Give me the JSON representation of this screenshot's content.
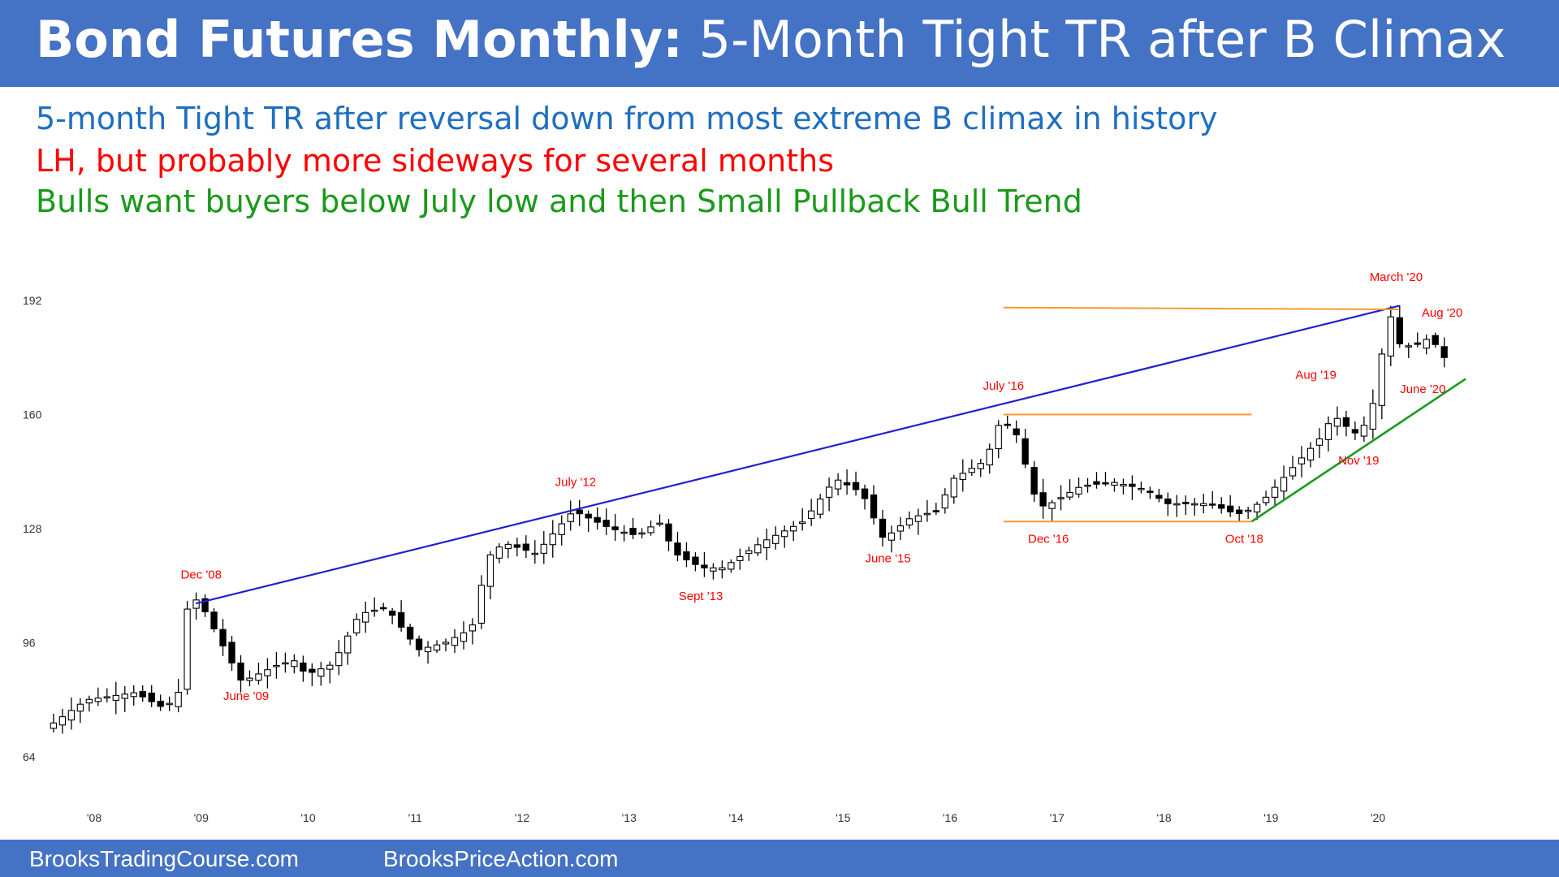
{
  "header": {
    "title_bold": "Bond Futures Monthly:",
    "title_rest": "5-Month Tight TR after B Climax"
  },
  "subtitle": {
    "line1": "5-month Tight TR after reversal down from most extreme B climax in history",
    "line2": "LH, but probably more sideways for several months",
    "line3": "Bulls want buyers below July low and then Small Pullback Bull Trend"
  },
  "footer": {
    "left": "BrooksTradingCourse.com",
    "right": "BrooksPriceAction.com"
  },
  "colors": {
    "header_bg": "#4472c4",
    "trendline_blue": "#2020d0",
    "trendline_green": "#1a9a1a",
    "range_orange": "#f59a30",
    "annotation_red": "#ff0000"
  },
  "chart_data": {
    "type": "candlestick",
    "ylim": [
      64,
      196
    ],
    "y_ticks": [
      64,
      96,
      128,
      160,
      192
    ],
    "x_range": [
      2007.55,
      2021.0
    ],
    "x_ticks": [
      {
        "value": 2008,
        "label": "'08"
      },
      {
        "value": 2009,
        "label": "'09"
      },
      {
        "value": 2010,
        "label": "'10"
      },
      {
        "value": 2011,
        "label": "'11"
      },
      {
        "value": 2012,
        "label": "'12"
      },
      {
        "value": 2013,
        "label": "'13"
      },
      {
        "value": 2014,
        "label": "'14"
      },
      {
        "value": 2015,
        "label": "'15"
      },
      {
        "value": 2016,
        "label": "'16"
      },
      {
        "value": 2017,
        "label": "'17"
      },
      {
        "value": 2018,
        "label": "'18"
      },
      {
        "value": 2019,
        "label": "'19"
      },
      {
        "value": 2020,
        "label": "'20"
      }
    ],
    "price_path": [
      [
        2007.62,
        72
      ],
      [
        2008.0,
        80
      ],
      [
        2008.45,
        82
      ],
      [
        2008.7,
        78
      ],
      [
        2008.85,
        80
      ],
      [
        2008.95,
        108
      ],
      [
        2009.05,
        108
      ],
      [
        2009.45,
        85
      ],
      [
        2009.8,
        90
      ],
      [
        2009.95,
        91
      ],
      [
        2010.05,
        87
      ],
      [
        2010.3,
        90
      ],
      [
        2010.55,
        104
      ],
      [
        2010.8,
        106
      ],
      [
        2010.95,
        100
      ],
      [
        2011.1,
        94
      ],
      [
        2011.35,
        96
      ],
      [
        2011.6,
        100
      ],
      [
        2011.75,
        120
      ],
      [
        2011.9,
        124
      ],
      [
        2012.2,
        121
      ],
      [
        2012.4,
        128
      ],
      [
        2012.55,
        133
      ],
      [
        2012.9,
        128
      ],
      [
        2013.15,
        126
      ],
      [
        2013.35,
        130
      ],
      [
        2013.5,
        121
      ],
      [
        2013.75,
        117
      ],
      [
        2013.95,
        117
      ],
      [
        2014.3,
        124
      ],
      [
        2014.7,
        130
      ],
      [
        2015.0,
        142
      ],
      [
        2015.25,
        138
      ],
      [
        2015.45,
        125
      ],
      [
        2015.7,
        131
      ],
      [
        2015.95,
        133
      ],
      [
        2016.1,
        142
      ],
      [
        2016.4,
        147
      ],
      [
        2016.55,
        159
      ],
      [
        2016.7,
        154
      ],
      [
        2016.85,
        138
      ],
      [
        2016.95,
        134
      ],
      [
        2017.3,
        140
      ],
      [
        2017.6,
        141
      ],
      [
        2017.9,
        139
      ],
      [
        2018.1,
        135
      ],
      [
        2018.5,
        135
      ],
      [
        2018.75,
        132
      ],
      [
        2018.85,
        133
      ],
      [
        2019.0,
        136
      ],
      [
        2019.3,
        146
      ],
      [
        2019.55,
        154
      ],
      [
        2019.65,
        160
      ],
      [
        2019.8,
        156
      ],
      [
        2019.9,
        154
      ],
      [
        2020.05,
        165
      ],
      [
        2020.17,
        190
      ],
      [
        2020.25,
        180
      ],
      [
        2020.4,
        179
      ],
      [
        2020.58,
        182
      ],
      [
        2020.65,
        176
      ]
    ],
    "lines": [
      {
        "name": "blue-trendline",
        "from": [
          2008.95,
          107
        ],
        "to": [
          2020.2,
          190.5
        ]
      },
      {
        "name": "green-trendline",
        "from": [
          2018.82,
          130
        ],
        "to": [
          2020.82,
          170
        ]
      },
      {
        "name": "orange-top",
        "from": [
          2016.5,
          190
        ],
        "to": [
          2020.2,
          189.5
        ]
      },
      {
        "name": "orange-mid",
        "from": [
          2016.5,
          160
        ],
        "to": [
          2018.82,
          160
        ]
      },
      {
        "name": "orange-bottom",
        "from": [
          2016.5,
          130
        ],
        "to": [
          2018.82,
          130
        ]
      }
    ],
    "annotations": [
      {
        "text": "March '20",
        "x": 2020.17,
        "y": 197.5
      },
      {
        "text": "Aug '20",
        "x": 2020.6,
        "y": 187.5
      },
      {
        "text": "Aug '19",
        "x": 2019.42,
        "y": 170
      },
      {
        "text": "June '20",
        "x": 2020.42,
        "y": 166
      },
      {
        "text": "July '16",
        "x": 2016.5,
        "y": 167
      },
      {
        "text": "Nov '19",
        "x": 2019.82,
        "y": 146
      },
      {
        "text": "July '12",
        "x": 2012.5,
        "y": 140
      },
      {
        "text": "Dec '16",
        "x": 2016.92,
        "y": 124
      },
      {
        "text": "Oct '18",
        "x": 2018.75,
        "y": 124
      },
      {
        "text": "June '15",
        "x": 2015.42,
        "y": 118.5
      },
      {
        "text": "Dec '08",
        "x": 2009.0,
        "y": 114
      },
      {
        "text": "Sept '13",
        "x": 2013.67,
        "y": 108
      },
      {
        "text": "June '09",
        "x": 2009.42,
        "y": 80
      }
    ]
  }
}
